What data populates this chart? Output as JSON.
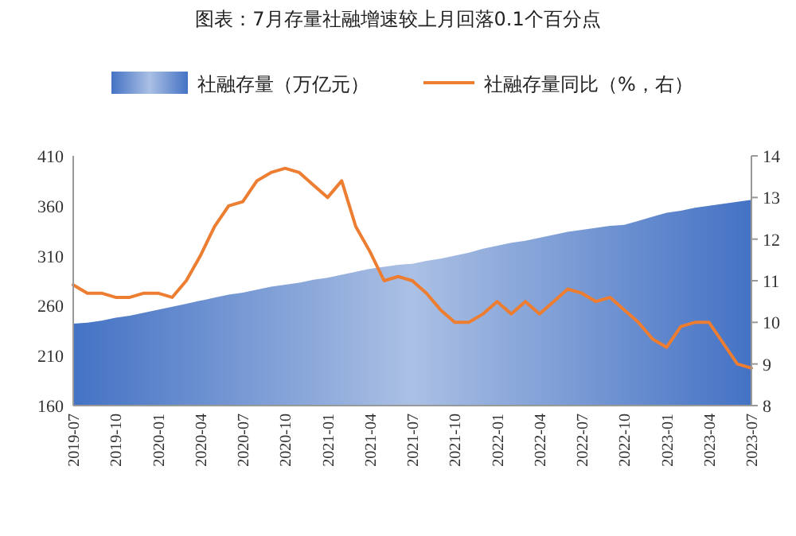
{
  "chart_data": {
    "type": "area",
    "title": "图表：7月存量社融增速较上月回落0.1个百分点",
    "categories": [
      "2019-07",
      null,
      null,
      "2019-10",
      null,
      null,
      "2020-01",
      null,
      null,
      "2020-04",
      null,
      null,
      "2020-07",
      null,
      null,
      "2020-10",
      null,
      null,
      "2021-01",
      null,
      null,
      "2021-04",
      null,
      null,
      "2021-07",
      null,
      null,
      "2021-10",
      null,
      null,
      "2022-01",
      null,
      null,
      "2022-04",
      null,
      null,
      "2022-07",
      null,
      null,
      "2022-10",
      null,
      null,
      "2023-01",
      null,
      null,
      "2023-04",
      null,
      null,
      "2023-07"
    ],
    "series": [
      {
        "name": "社融存量（万亿元）",
        "color": "#4472c4",
        "values": [
          242,
          243,
          245,
          248,
          250,
          253,
          256,
          259,
          262,
          265,
          268,
          271,
          273,
          276,
          279,
          281,
          283,
          286,
          288,
          291,
          294,
          297,
          299,
          301,
          302,
          305,
          307,
          310,
          313,
          317,
          320,
          323,
          325,
          328,
          331,
          334,
          336,
          338,
          340,
          341,
          345,
          349,
          353,
          355,
          358,
          360,
          362,
          364,
          366
        ]
      },
      {
        "name": "社融存量同比（%，右）",
        "type": "line",
        "axis": "y2",
        "color": "#ed7d31",
        "values": [
          10.9,
          10.7,
          10.7,
          10.6,
          10.6,
          10.7,
          10.7,
          10.6,
          11.0,
          11.6,
          12.3,
          12.8,
          12.9,
          13.4,
          13.6,
          13.7,
          13.6,
          13.3,
          13.0,
          13.4,
          12.3,
          11.7,
          11.0,
          11.1,
          11.0,
          10.7,
          10.3,
          10.0,
          10.0,
          10.2,
          10.5,
          10.2,
          10.5,
          10.2,
          10.5,
          10.8,
          10.7,
          10.5,
          10.6,
          10.3,
          10.0,
          9.6,
          9.4,
          9.9,
          10.0,
          10.0,
          9.5,
          9.0,
          8.9
        ]
      }
    ],
    "ylim": [
      160,
      410
    ],
    "yticks": [
      160,
      210,
      260,
      310,
      360,
      410
    ],
    "y2lim": [
      8,
      14
    ],
    "y2ticks": [
      8,
      9,
      10,
      11,
      12,
      13,
      14
    ],
    "legend": "top",
    "grid": false
  }
}
